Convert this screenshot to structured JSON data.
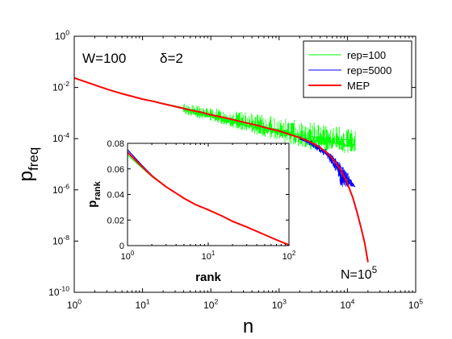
{
  "chart_data": [
    {
      "type": "line",
      "xlabel": "n",
      "ylabel_main": "p",
      "ylabel_sub": "freq",
      "xscale": "log",
      "yscale": "log",
      "xlim": [
        1,
        100000
      ],
      "ylim": [
        1e-10,
        1
      ],
      "x_ticks": [
        {
          "value": 1,
          "base": "10",
          "exp": "0"
        },
        {
          "value": 10,
          "base": "10",
          "exp": "1"
        },
        {
          "value": 100,
          "base": "10",
          "exp": "2"
        },
        {
          "value": 1000,
          "base": "10",
          "exp": "3"
        },
        {
          "value": 10000,
          "base": "10",
          "exp": "4"
        },
        {
          "value": 100000,
          "base": "10",
          "exp": "5"
        }
      ],
      "y_ticks": [
        {
          "value": 1,
          "base": "10",
          "exp": "0"
        },
        {
          "value": 0.01,
          "base": "10",
          "exp": "-2"
        },
        {
          "value": 0.0001,
          "base": "10",
          "exp": "-4"
        },
        {
          "value": 1e-06,
          "base": "10",
          "exp": "-6"
        },
        {
          "value": 1e-08,
          "base": "10",
          "exp": "-8"
        },
        {
          "value": 1e-10,
          "base": "10",
          "exp": "-10"
        }
      ],
      "grid": false,
      "legend_position": "top-right",
      "annotations": {
        "w_label": "W=100",
        "delta_label": "δ=2",
        "n_base": "N=10",
        "n_exp": "5"
      },
      "series": [
        {
          "name": "rep=100",
          "color": "#00ff00",
          "points": [
            [
              1,
              0.0235
            ],
            [
              2,
              0.0125
            ],
            [
              3,
              0.0085
            ],
            [
              4,
              0.0068
            ],
            [
              5,
              0.0058
            ],
            [
              7,
              0.0046
            ],
            [
              10,
              0.0036
            ],
            [
              15,
              0.0029
            ],
            [
              20,
              0.0024
            ],
            [
              30,
              0.0019
            ],
            [
              50,
              0.0014
            ],
            [
              70,
              0.0011
            ],
            [
              100,
              0.0009
            ],
            [
              150,
              0.0007
            ],
            [
              200,
              0.0006
            ],
            [
              300,
              0.00045
            ],
            [
              500,
              0.00033
            ],
            [
              700,
              0.00027
            ],
            [
              1000,
              0.00022
            ],
            [
              1500,
              0.00017
            ],
            [
              2000,
              0.00014
            ],
            [
              3000,
              0.00012
            ],
            [
              5000,
              0.0001
            ],
            [
              7000,
              9.5e-05
            ],
            [
              10000,
              9e-05
            ],
            [
              13000,
              9e-05
            ]
          ],
          "noise_from_x": 40,
          "noise_top": [
            [
              40,
              0.0025
            ],
            [
              100,
              0.0016
            ],
            [
              300,
              0.0011
            ],
            [
              1000,
              0.0007
            ],
            [
              3000,
              0.00045
            ],
            [
              10000,
              0.00025
            ],
            [
              13000,
              0.00022
            ]
          ],
          "noise_bottom": [
            [
              40,
              0.0009
            ],
            [
              100,
              0.0005
            ],
            [
              300,
              0.0002
            ],
            [
              1000,
              8e-05
            ],
            [
              3000,
              3.5e-05
            ],
            [
              10000,
              2.5e-05
            ],
            [
              13000,
              3e-05
            ]
          ]
        },
        {
          "name": "rep=5000",
          "color": "#0000ff",
          "points": [
            [
              1,
              0.0235
            ],
            [
              2,
              0.0125
            ],
            [
              3,
              0.0086
            ],
            [
              4,
              0.0068
            ],
            [
              5,
              0.0057
            ],
            [
              7,
              0.0045
            ],
            [
              10,
              0.0035
            ],
            [
              15,
              0.0028
            ],
            [
              20,
              0.0023
            ],
            [
              30,
              0.0018
            ],
            [
              50,
              0.0013
            ],
            [
              70,
              0.0011
            ],
            [
              100,
              0.00085
            ],
            [
              150,
              0.00068
            ],
            [
              200,
              0.00057
            ],
            [
              300,
              0.00044
            ],
            [
              500,
              0.00032
            ],
            [
              700,
              0.00025
            ],
            [
              1000,
              0.0002
            ],
            [
              1500,
              0.00014
            ],
            [
              2000,
              0.00011
            ],
            [
              3000,
              7e-05
            ],
            [
              4000,
              4.5e-05
            ],
            [
              5000,
              3e-05
            ],
            [
              6000,
              2e-05
            ],
            [
              7000,
              1.2e-05
            ],
            [
              8000,
              8e-06
            ],
            [
              9000,
              5e-06
            ],
            [
              10000,
              3e-06
            ],
            [
              13000,
              1.3e-06
            ]
          ],
          "noise_from_x": 2000,
          "noise_top": [
            [
              2000,
              0.00013
            ],
            [
              3000,
              8.5e-05
            ],
            [
              5000,
              4e-05
            ],
            [
              7000,
              1.8e-05
            ],
            [
              10000,
              5.5e-06
            ],
            [
              13000,
              1.3e-06
            ]
          ],
          "noise_bottom": [
            [
              2000,
              9e-05
            ],
            [
              3000,
              5e-05
            ],
            [
              5000,
              1.8e-05
            ],
            [
              7000,
              4.5e-06
            ],
            [
              8000,
              1.3e-06
            ],
            [
              13000,
              1.3e-06
            ]
          ]
        },
        {
          "name": "MEP",
          "color": "#ff0000",
          "points": [
            [
              1,
              0.0235
            ],
            [
              2,
              0.0125
            ],
            [
              3,
              0.0086
            ],
            [
              4,
              0.0068
            ],
            [
              5,
              0.0057
            ],
            [
              7,
              0.0045
            ],
            [
              10,
              0.0035
            ],
            [
              15,
              0.0028
            ],
            [
              20,
              0.0023
            ],
            [
              30,
              0.0018
            ],
            [
              50,
              0.0013
            ],
            [
              70,
              0.0011
            ],
            [
              100,
              0.00085
            ],
            [
              150,
              0.00068
            ],
            [
              200,
              0.00057
            ],
            [
              300,
              0.00044
            ],
            [
              500,
              0.00032
            ],
            [
              700,
              0.00025
            ],
            [
              1000,
              0.0002
            ],
            [
              1500,
              0.00014
            ],
            [
              2000,
              0.00011
            ],
            [
              3000,
              7e-05
            ],
            [
              4000,
              4.5e-05
            ],
            [
              5000,
              2.8e-05
            ],
            [
              6000,
              1.7e-05
            ],
            [
              7000,
              1e-05
            ],
            [
              8000,
              6e-06
            ],
            [
              10000,
              1.8e-06
            ],
            [
              12000,
              5e-07
            ],
            [
              14000,
              1.2e-07
            ],
            [
              16000,
              3e-08
            ],
            [
              18000,
              8e-09
            ],
            [
              20000,
              1.5e-09
            ]
          ]
        }
      ]
    },
    {
      "type": "line",
      "xlabel": "rank",
      "ylabel_main": "p",
      "ylabel_sub": "rank",
      "xscale": "log",
      "yscale": "linear",
      "xlim": [
        1,
        100
      ],
      "ylim": [
        0,
        0.08
      ],
      "x_ticks": [
        {
          "value": 1,
          "base": "10",
          "exp": "0"
        },
        {
          "value": 10,
          "base": "10",
          "exp": "1"
        },
        {
          "value": 100,
          "base": "10",
          "exp": "2"
        }
      ],
      "y_ticks": [
        {
          "value": 0,
          "label": "0"
        },
        {
          "value": 0.02,
          "label": "0.02"
        },
        {
          "value": 0.04,
          "label": "0.04"
        },
        {
          "value": 0.06,
          "label": "0.06"
        },
        {
          "value": 0.08,
          "label": "0.08"
        }
      ],
      "grid": false,
      "series": [
        {
          "color": "#00ff00",
          "points": [
            [
              1,
              0.071
            ],
            [
              1.5,
              0.061
            ],
            [
              2,
              0.054
            ],
            [
              3,
              0.046
            ],
            [
              4,
              0.041
            ],
            [
              5,
              0.037
            ],
            [
              7,
              0.032
            ],
            [
              10,
              0.028
            ],
            [
              15,
              0.023
            ],
            [
              20,
              0.019
            ],
            [
              30,
              0.0145
            ],
            [
              50,
              0.0085
            ],
            [
              70,
              0.0045
            ],
            [
              100,
              0.0005
            ]
          ]
        },
        {
          "color": "#0000ff",
          "points": [
            [
              1,
              0.075
            ],
            [
              1.5,
              0.063
            ],
            [
              2,
              0.055
            ],
            [
              3,
              0.046
            ],
            [
              4,
              0.041
            ],
            [
              5,
              0.037
            ],
            [
              7,
              0.032
            ],
            [
              10,
              0.028
            ],
            [
              15,
              0.023
            ],
            [
              20,
              0.019
            ],
            [
              30,
              0.0145
            ],
            [
              50,
              0.0085
            ],
            [
              70,
              0.0045
            ],
            [
              100,
              0.0005
            ]
          ]
        },
        {
          "color": "#ff0000",
          "points": [
            [
              1,
              0.073
            ],
            [
              1.5,
              0.062
            ],
            [
              2,
              0.0545
            ],
            [
              3,
              0.046
            ],
            [
              4,
              0.041
            ],
            [
              5,
              0.037
            ],
            [
              7,
              0.032
            ],
            [
              10,
              0.028
            ],
            [
              15,
              0.023
            ],
            [
              20,
              0.019
            ],
            [
              30,
              0.0145
            ],
            [
              50,
              0.0085
            ],
            [
              70,
              0.0045
            ],
            [
              100,
              0.0005
            ]
          ]
        }
      ]
    }
  ]
}
